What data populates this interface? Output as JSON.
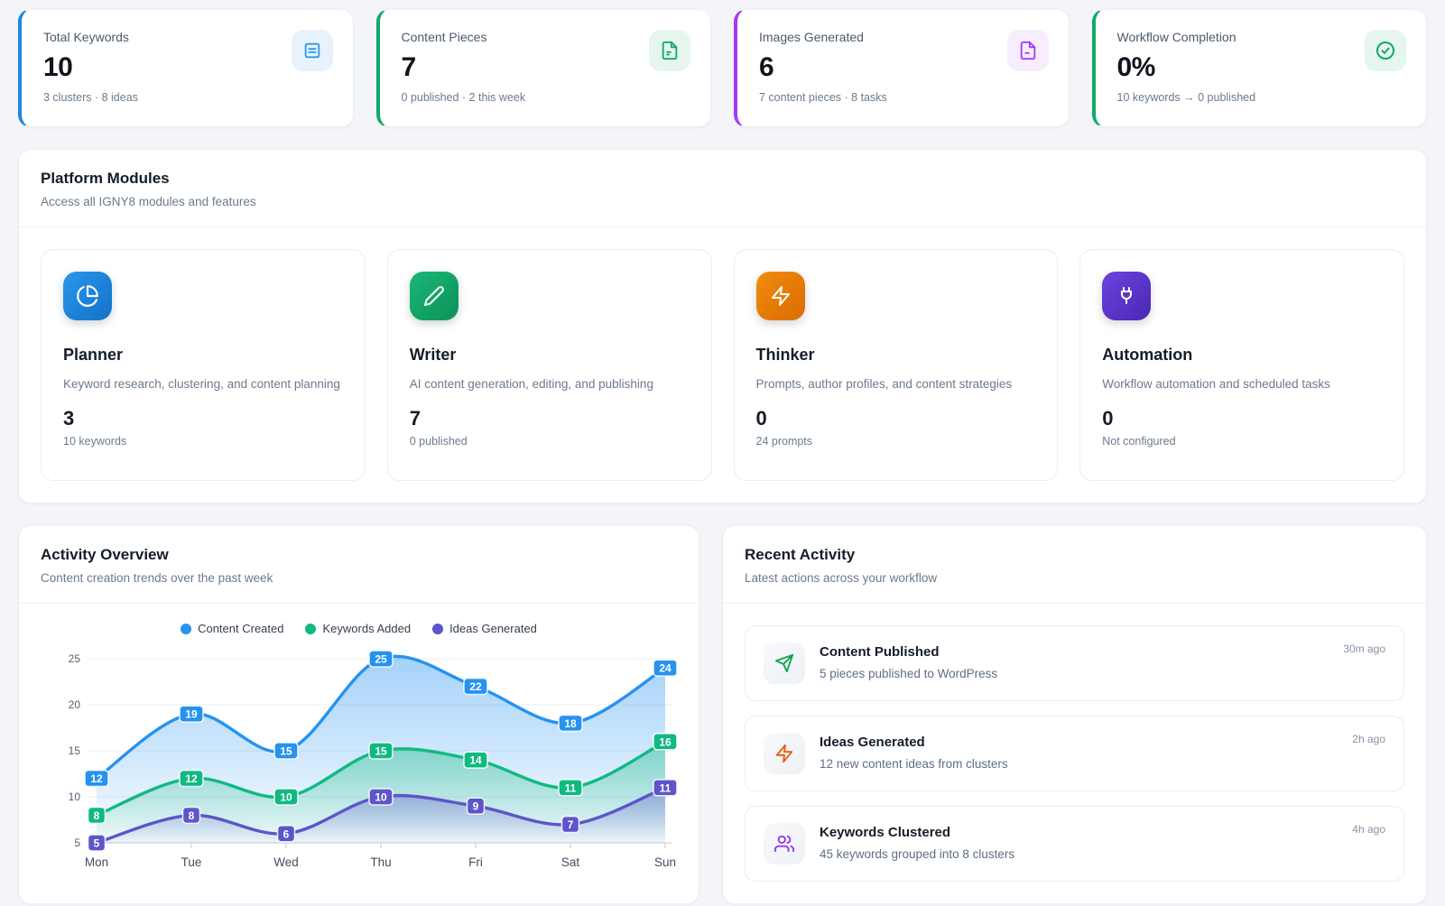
{
  "stats": [
    {
      "label": "Total Keywords",
      "value": "10",
      "sub": "3 clusters · 8 ideas",
      "accent": "#1d87e0",
      "icon": "keywords-list-icon",
      "icon_color": "#2b98ee",
      "icon_bg": "#e8f2fd"
    },
    {
      "label": "Content Pieces",
      "value": "7",
      "sub": "0 published · 2 this week",
      "accent": "#10a968",
      "icon": "file-text-icon",
      "icon_color": "#12a868",
      "icon_bg": "#e5f6ee"
    },
    {
      "label": "Images Generated",
      "value": "6",
      "sub": "7 content pieces · 8 tasks",
      "accent": "#a43bf2",
      "icon": "file-image-icon",
      "icon_color": "#a43bf2",
      "icon_bg": "#f6edfe"
    },
    {
      "label": "Workflow Completion",
      "value": "0%",
      "sub": "10 keywords → 0 published",
      "accent": "#10a968",
      "icon": "check-circle-icon",
      "icon_color": "#12a868",
      "icon_bg": "#e5f6ee"
    }
  ],
  "modules_section": {
    "title": "Platform Modules",
    "subtitle": "Access all IGNY8 modules and features",
    "modules": [
      {
        "name": "Planner",
        "description": "Keyword research, clustering, and content planning",
        "count": "3",
        "meta": "10 keywords",
        "color": "#1c86dd",
        "icon": "pie-chart-icon"
      },
      {
        "name": "Writer",
        "description": "AI content generation, editing, and publishing",
        "count": "7",
        "meta": "0 published",
        "color": "#12a165",
        "icon": "pencil-icon"
      },
      {
        "name": "Thinker",
        "description": "Prompts, author profiles, and content strategies",
        "count": "0",
        "meta": "24 prompts",
        "color": "#e67607",
        "icon": "lightning-icon"
      },
      {
        "name": "Automation",
        "description": "Workflow automation and scheduled tasks",
        "count": "0",
        "meta": "Not configured",
        "color": "#5a33c7",
        "icon": "plug-icon"
      }
    ]
  },
  "activity_overview": {
    "title": "Activity Overview",
    "subtitle": "Content creation trends over the past week"
  },
  "chart_data": {
    "type": "area",
    "title": "Activity Overview",
    "x": [
      "Mon",
      "Tue",
      "Wed",
      "Thu",
      "Fri",
      "Sat",
      "Sun"
    ],
    "series": [
      {
        "name": "Content Created",
        "color": "#2593ef",
        "values": [
          12,
          19,
          15,
          25,
          22,
          18,
          24
        ]
      },
      {
        "name": "Keywords Added",
        "color": "#10b981",
        "values": [
          8,
          12,
          10,
          15,
          14,
          11,
          16
        ]
      },
      {
        "name": "Ideas Generated",
        "color": "#5d55c9",
        "values": [
          5,
          8,
          6,
          10,
          9,
          7,
          11
        ]
      }
    ],
    "ylim": [
      5,
      25
    ],
    "yticks": [
      5,
      10,
      15,
      20,
      25
    ],
    "grid": true,
    "legend_position": "top",
    "point_labels": true
  },
  "recent_activity": {
    "title": "Recent Activity",
    "subtitle": "Latest actions across your workflow",
    "items": [
      {
        "title": "Content Published",
        "description": "5 pieces published to WordPress",
        "time": "30m ago",
        "icon": "send-icon",
        "icon_color": "#16a34a"
      },
      {
        "title": "Ideas Generated",
        "description": "12 new content ideas from clusters",
        "time": "2h ago",
        "icon": "zap-icon",
        "icon_color": "#ea580c"
      },
      {
        "title": "Keywords Clustered",
        "description": "45 keywords grouped into 8 clusters",
        "time": "4h ago",
        "icon": "users-icon",
        "icon_color": "#9333ea"
      }
    ]
  }
}
